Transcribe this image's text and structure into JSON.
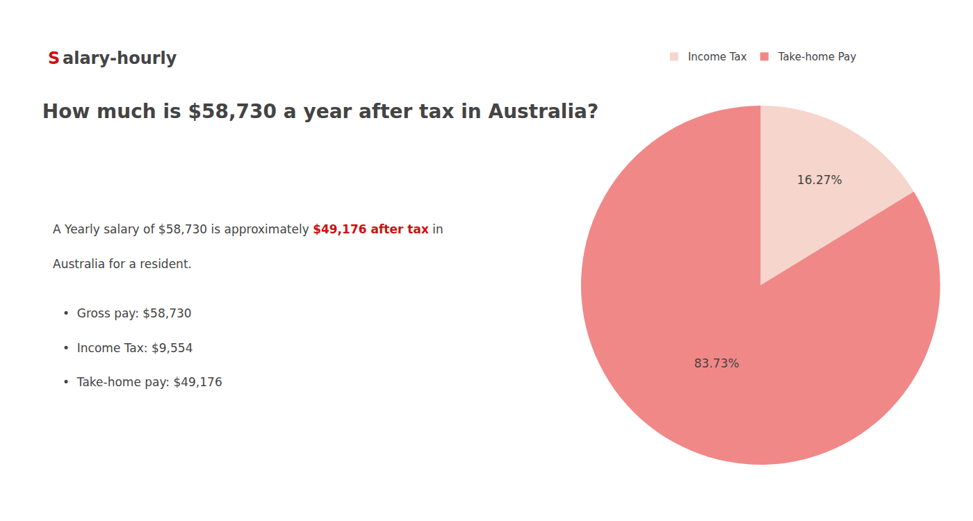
{
  "chart_data": {
    "type": "pie",
    "title": "How much is $58,730 a year after tax in Australia?",
    "categories": [
      "Income Tax",
      "Take-home Pay"
    ],
    "values": [
      16.27,
      83.73
    ],
    "value_labels": [
      "16.27%",
      "83.73%"
    ],
    "colors": [
      "#f5d5cc",
      "#f08888"
    ],
    "data_labels": true,
    "legend": "top",
    "annotations": [
      {
        "text": "S",
        "color": "#cc1111"
      },
      {
        "text": "alary-hourly"
      },
      {
        "text": "A Yearly salary of $58,730 is approximately "
      },
      {
        "text": "$49,176 after tax",
        "color": "#cc1111"
      },
      {
        "text": " in"
      },
      {
        "text": "Australia for a resident."
      },
      {
        "text": "•  Gross pay: $58,730"
      },
      {
        "text": "•  Income Tax: $9,554"
      },
      {
        "text": "•  Take-home pay: $49,176"
      }
    ]
  }
}
